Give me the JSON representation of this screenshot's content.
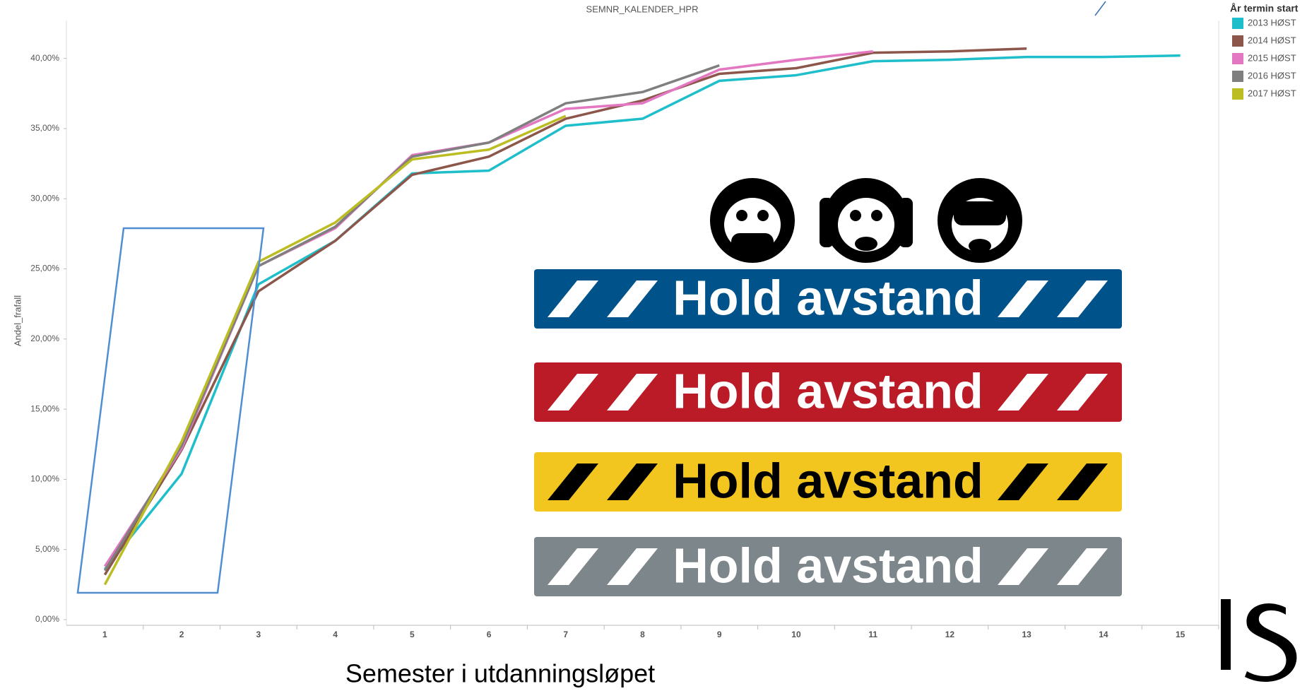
{
  "chart_data": {
    "type": "line",
    "title": "SEMNR_KALENDER_HPR",
    "y_label": "Andel_frafall",
    "x_label": "Semester i utdanningsløpet",
    "legend_title": "År termin start",
    "legend": "right",
    "x": [
      1,
      2,
      3,
      4,
      5,
      6,
      7,
      8,
      9,
      10,
      11,
      12,
      13,
      14,
      15
    ],
    "xlim": [
      0.5,
      15.5
    ],
    "xticks": [
      1,
      2,
      3,
      4,
      5,
      6,
      7,
      8,
      9,
      10,
      11,
      12,
      13,
      14,
      15
    ],
    "ylim": [
      -0.4,
      42.7
    ],
    "yticks": [
      {
        "value": 0,
        "label": "0,00%"
      },
      {
        "value": 5,
        "label": "5,00%"
      },
      {
        "value": 10,
        "label": "10,00%"
      },
      {
        "value": 15,
        "label": "15,00%"
      },
      {
        "value": 20,
        "label": "20,00%"
      },
      {
        "value": 25,
        "label": "25,00%"
      },
      {
        "value": 30,
        "label": "30,00%"
      },
      {
        "value": 35,
        "label": "35,00%"
      },
      {
        "value": 40,
        "label": "40,00%"
      }
    ],
    "series": [
      {
        "name": "2013 HØST",
        "color": "#1fbecb",
        "values": [
          3.6,
          10.4,
          23.9,
          27.0,
          31.8,
          32.0,
          35.2,
          35.7,
          38.4,
          38.8,
          39.8,
          39.9,
          40.1,
          40.1,
          40.2
        ]
      },
      {
        "name": "2014 HØST",
        "color": "#8c564b",
        "values": [
          3.2,
          12.1,
          23.4,
          27.0,
          31.7,
          33.0,
          35.7,
          37.0,
          38.9,
          39.3,
          40.4,
          40.5,
          40.7,
          null,
          null
        ]
      },
      {
        "name": "2015 HØST",
        "color": "#e377c2",
        "values": [
          3.8,
          12.2,
          25.2,
          27.9,
          33.1,
          34.0,
          36.4,
          36.8,
          39.2,
          39.9,
          40.5,
          null,
          null,
          null,
          null
        ]
      },
      {
        "name": "2016 HØST",
        "color": "#7f7f7f",
        "values": [
          3.5,
          12.4,
          25.2,
          28.0,
          33.0,
          34.0,
          36.8,
          37.6,
          39.5,
          null,
          null,
          null,
          null,
          null,
          null
        ]
      },
      {
        "name": "2017 HØST",
        "color": "#bcbd22",
        "values": [
          2.5,
          12.7,
          25.5,
          28.3,
          32.8,
          33.5,
          35.9,
          null,
          null,
          null,
          null,
          null,
          null,
          null,
          null
        ]
      }
    ],
    "banners": [
      {
        "text": "Hold avstand",
        "color": "#00538a",
        "text_color": "#ffffff"
      },
      {
        "text": "Hold avstand",
        "color": "#bb1b26",
        "text_color": "#ffffff"
      },
      {
        "text": "Hold avstand",
        "color": "#f3c51f",
        "text_color": "#000000"
      },
      {
        "text": "Hold avstand",
        "color": "#7c868b",
        "text_color": "#ffffff"
      }
    ]
  }
}
